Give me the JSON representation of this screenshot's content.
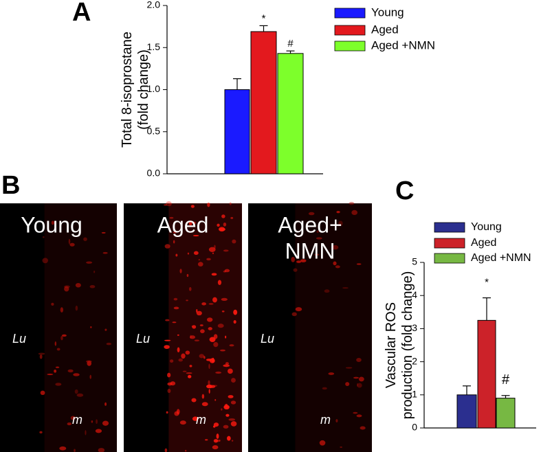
{
  "chart_data": [
    {
      "type": "bar",
      "panel": "A",
      "ylabel": [
        "Total 8-isoprostane",
        "(fold change)"
      ],
      "ylim": [
        0,
        2
      ],
      "yticks": [
        {
          "value": 0,
          "label": "0.0"
        },
        0.5,
        {
          "value": 1,
          "label": "1.0"
        },
        1.5,
        {
          "value": 2,
          "label": "2.0"
        }
      ],
      "series": [
        {
          "name": "Young",
          "color": "#1a1aff",
          "values": [
            1.0
          ],
          "errors": [
            0.13
          ]
        },
        {
          "name": "Aged",
          "color": "#e3191e",
          "values": [
            1.69
          ],
          "errors": [
            0.07
          ],
          "annotation": "*"
        },
        {
          "name": "Aged +NMN",
          "color": "#7dff2b",
          "values": [
            1.43
          ],
          "errors": [
            0.03
          ],
          "annotation": "#"
        }
      ]
    },
    {
      "type": "bar",
      "panel": "C",
      "ylabel": [
        "Vascular ROS",
        "production (fold change)"
      ],
      "ylim": [
        0,
        5
      ],
      "yticks": [
        0,
        1,
        2,
        3,
        4,
        5
      ],
      "series": [
        {
          "name": "Young",
          "color": "#2b2f8f",
          "values": [
            1.0
          ],
          "errors": [
            0.27
          ]
        },
        {
          "name": "Aged",
          "color": "#cc2229",
          "values": [
            3.25
          ],
          "errors": [
            0.68
          ],
          "annotation": "*"
        },
        {
          "name": "Aged +NMN",
          "color": "#77b843",
          "values": [
            0.9
          ],
          "errors": [
            0.08
          ],
          "annotation": "#"
        }
      ]
    }
  ],
  "images": {
    "panel": "B",
    "items": [
      {
        "title": [
          "Young"
        ],
        "lumen": "Lu",
        "media": "m"
      },
      {
        "title": [
          "Aged"
        ],
        "lumen": "Lu",
        "media": "m"
      },
      {
        "title": [
          "Aged+",
          "NMN"
        ],
        "lumen": "Lu",
        "media": "m"
      }
    ]
  }
}
